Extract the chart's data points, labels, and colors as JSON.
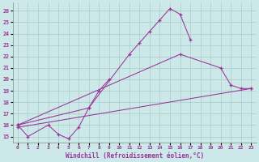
{
  "xlabel": "Windchill (Refroidissement éolien,°C)",
  "bg_color": "#cce8e8",
  "grid_color": "#aacccc",
  "line_color": "#993399",
  "xlim": [
    -0.5,
    23.5
  ],
  "ylim": [
    14.5,
    26.7
  ],
  "xticks": [
    0,
    1,
    2,
    3,
    4,
    5,
    6,
    7,
    8,
    9,
    10,
    11,
    12,
    13,
    14,
    15,
    16,
    17,
    18,
    19,
    20,
    21,
    22,
    23
  ],
  "yticks": [
    15,
    16,
    17,
    18,
    19,
    20,
    21,
    22,
    23,
    24,
    25,
    26
  ],
  "series": [
    {
      "x": [
        0,
        1,
        3,
        4,
        5,
        6,
        7,
        8,
        9
      ],
      "y": [
        16.0,
        15.0,
        16.0,
        15.2,
        14.8,
        15.8,
        17.5,
        19.0,
        20.0
      ]
    },
    {
      "x": [
        0,
        7,
        11,
        12,
        13,
        14,
        15,
        16,
        17
      ],
      "y": [
        16.0,
        17.5,
        22.2,
        23.2,
        24.2,
        25.2,
        26.2,
        25.7,
        23.5
      ]
    },
    {
      "x": [
        0,
        16,
        20,
        21,
        22,
        23
      ],
      "y": [
        16.0,
        22.2,
        21.0,
        19.5,
        19.2,
        19.2
      ]
    },
    {
      "x": [
        0,
        23
      ],
      "y": [
        15.8,
        19.2
      ]
    }
  ]
}
